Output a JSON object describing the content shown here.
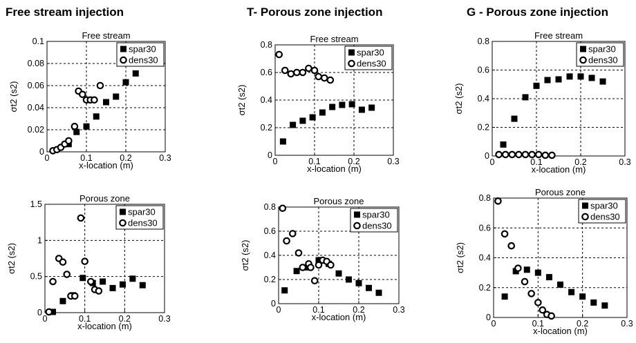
{
  "column_titles": [
    "Free stream injection",
    "T- Porous zone injection",
    "G - Porous zone injection"
  ],
  "chart_data": [
    {
      "type": "scatter",
      "title": "Free stream",
      "xlabel": "x-location (m)",
      "ylabel": "σt2 (s2)",
      "xlim": [
        0,
        0.3
      ],
      "ylim": [
        0,
        0.1
      ],
      "xticks": [
        0,
        0.1,
        0.2,
        0.3
      ],
      "xtick_labels": [
        "0",
        "0.1",
        "0.2",
        "0.3"
      ],
      "yticks": [
        0,
        0.02,
        0.04,
        0.06,
        0.08,
        0.1
      ],
      "ytick_labels": [
        "0",
        "0.02",
        "0.04",
        "0.06",
        "0.08",
        "0.1"
      ],
      "legend_position": "top-right",
      "grid": true,
      "series": [
        {
          "name": "spar30",
          "marker": "square",
          "x": [
            0.055,
            0.075,
            0.1,
            0.125,
            0.15,
            0.175,
            0.2,
            0.225
          ],
          "y": [
            0.007,
            0.018,
            0.023,
            0.032,
            0.045,
            0.05,
            0.063,
            0.071
          ]
        },
        {
          "name": "dens30",
          "marker": "circle",
          "x": [
            0.015,
            0.025,
            0.035,
            0.045,
            0.055,
            0.07,
            0.08,
            0.09,
            0.1,
            0.11,
            0.12,
            0.135
          ],
          "y": [
            0.001,
            0.002,
            0.004,
            0.007,
            0.01,
            0.023,
            0.055,
            0.052,
            0.047,
            0.047,
            0.047,
            0.06
          ]
        }
      ]
    },
    {
      "type": "scatter",
      "title": "Free stream",
      "xlabel": "x-location (m)",
      "ylabel": "σt2 (s2)",
      "xlim": [
        0,
        0.3
      ],
      "ylim": [
        0,
        0.8
      ],
      "xticks": [
        0,
        0.1,
        0.2,
        0.3
      ],
      "xtick_labels": [
        "0",
        "0.1",
        "0.2",
        "0.3"
      ],
      "yticks": [
        0,
        0.2,
        0.4,
        0.6,
        0.8
      ],
      "ytick_labels": [
        "0",
        "0.2",
        "0.4",
        "0.6",
        "0.8"
      ],
      "legend_position": "top-right",
      "grid": true,
      "series": [
        {
          "name": "spar30",
          "marker": "square",
          "x": [
            0.02,
            0.045,
            0.07,
            0.095,
            0.12,
            0.145,
            0.17,
            0.195,
            0.22,
            0.245
          ],
          "y": [
            0.1,
            0.22,
            0.25,
            0.275,
            0.31,
            0.35,
            0.365,
            0.37,
            0.33,
            0.345
          ]
        },
        {
          "name": "dens30",
          "marker": "circle",
          "x": [
            0.01,
            0.025,
            0.04,
            0.055,
            0.07,
            0.085,
            0.1,
            0.11,
            0.125,
            0.14
          ],
          "y": [
            0.73,
            0.615,
            0.59,
            0.6,
            0.6,
            0.63,
            0.615,
            0.57,
            0.56,
            0.545
          ]
        }
      ]
    },
    {
      "type": "scatter",
      "title": "Free stream",
      "xlabel": "x-location (m)",
      "ylabel": "σt2 (s2)",
      "xlim": [
        0,
        0.3
      ],
      "ylim": [
        0,
        0.8
      ],
      "xticks": [
        0,
        0.1,
        0.2,
        0.3
      ],
      "xtick_labels": [
        "0",
        "0.1",
        "0.2",
        "0.3"
      ],
      "yticks": [
        0,
        0.2,
        0.4,
        0.6,
        0.8
      ],
      "ytick_labels": [
        "0",
        "0.2",
        "0.4",
        "0.6",
        "0.8"
      ],
      "legend_position": "top-right",
      "grid": true,
      "series": [
        {
          "name": "spar30",
          "marker": "square",
          "x": [
            0.025,
            0.05,
            0.075,
            0.1,
            0.125,
            0.15,
            0.175,
            0.2,
            0.225,
            0.25
          ],
          "y": [
            0.08,
            0.26,
            0.41,
            0.49,
            0.53,
            0.535,
            0.555,
            0.555,
            0.545,
            0.52
          ]
        },
        {
          "name": "dens30",
          "marker": "circle",
          "x": [
            0.015,
            0.03,
            0.045,
            0.06,
            0.075,
            0.09,
            0.105,
            0.12,
            0.135
          ],
          "y": [
            0.01,
            0.01,
            0.01,
            0.01,
            0.01,
            0.01,
            0.01,
            0.005,
            0.005
          ]
        }
      ]
    },
    {
      "type": "scatter",
      "title": "Porous zone",
      "xlabel": "x-location (m)",
      "ylabel": "σt2 (s2)",
      "xlim": [
        0,
        0.3
      ],
      "ylim": [
        0,
        1.5
      ],
      "xticks": [
        0,
        0.1,
        0.2,
        0.3
      ],
      "xtick_labels": [
        "0",
        "0.1",
        "0.2",
        "0.3"
      ],
      "yticks": [
        0,
        0.5,
        1,
        1.5
      ],
      "ytick_labels": [
        "0",
        "0.5",
        "1",
        "1.5"
      ],
      "legend_position": "top-right",
      "grid": true,
      "series": [
        {
          "name": "spar30",
          "marker": "square",
          "x": [
            0.02,
            0.045,
            0.07,
            0.095,
            0.12,
            0.145,
            0.17,
            0.195,
            0.22,
            0.245
          ],
          "y": [
            0.01,
            0.16,
            0.24,
            0.48,
            0.41,
            0.43,
            0.34,
            0.39,
            0.47,
            0.38
          ]
        },
        {
          "name": "dens30",
          "marker": "circle",
          "x": [
            0.01,
            0.02,
            0.035,
            0.045,
            0.055,
            0.065,
            0.075,
            0.09,
            0.1,
            0.115,
            0.125,
            0.135
          ],
          "y": [
            0.01,
            0.43,
            0.75,
            0.7,
            0.53,
            0.23,
            0.23,
            1.31,
            0.71,
            0.43,
            0.32,
            0.3
          ]
        }
      ]
    },
    {
      "type": "scatter",
      "title": "Porous zone",
      "xlabel": "x-location (m)",
      "ylabel": "σt2 (s2)",
      "xlim": [
        0,
        0.3
      ],
      "ylim": [
        0,
        0.8
      ],
      "xticks": [
        0,
        0.1,
        0.2,
        0.3
      ],
      "xtick_labels": [
        "0",
        "0.1",
        "0.2",
        "0.3"
      ],
      "yticks": [
        0,
        0.2,
        0.4,
        0.6,
        0.8
      ],
      "ytick_labels": [
        "0",
        "0.2",
        "0.4",
        "0.6",
        "0.8"
      ],
      "legend_position": "top-right",
      "grid": true,
      "series": [
        {
          "name": "spar30",
          "marker": "square",
          "x": [
            0.015,
            0.045,
            0.07,
            0.1,
            0.125,
            0.15,
            0.175,
            0.2,
            0.225,
            0.25
          ],
          "y": [
            0.11,
            0.27,
            0.3,
            0.36,
            0.33,
            0.25,
            0.2,
            0.17,
            0.13,
            0.09
          ]
        },
        {
          "name": "dens30",
          "marker": "circle",
          "x": [
            0.01,
            0.02,
            0.035,
            0.05,
            0.06,
            0.075,
            0.08,
            0.09,
            0.1,
            0.11,
            0.12,
            0.13
          ],
          "y": [
            0.79,
            0.52,
            0.58,
            0.42,
            0.3,
            0.33,
            0.3,
            0.19,
            0.32,
            0.36,
            0.35,
            0.32
          ]
        }
      ]
    },
    {
      "type": "scatter",
      "title": "Porous zone",
      "xlabel": "x-location (m)",
      "ylabel": "σt2 (s2)",
      "xlim": [
        0,
        0.3
      ],
      "ylim": [
        0,
        0.8
      ],
      "xticks": [
        0,
        0.1,
        0.2,
        0.3
      ],
      "xtick_labels": [
        "0",
        "0.1",
        "0.2",
        "0.3"
      ],
      "yticks": [
        0,
        0.2,
        0.4,
        0.6,
        0.8
      ],
      "ytick_labels": [
        "0",
        "0.2",
        "0.4",
        "0.6",
        "0.8"
      ],
      "legend_position": "top-right",
      "grid": true,
      "series": [
        {
          "name": "spar30",
          "marker": "square",
          "x": [
            0.025,
            0.05,
            0.075,
            0.1,
            0.125,
            0.15,
            0.175,
            0.2,
            0.225,
            0.25
          ],
          "y": [
            0.14,
            0.31,
            0.32,
            0.3,
            0.27,
            0.22,
            0.17,
            0.14,
            0.1,
            0.08
          ]
        },
        {
          "name": "dens30",
          "marker": "circle",
          "x": [
            0.01,
            0.025,
            0.04,
            0.055,
            0.07,
            0.085,
            0.1,
            0.11,
            0.12,
            0.13
          ],
          "y": [
            0.78,
            0.56,
            0.48,
            0.33,
            0.24,
            0.16,
            0.1,
            0.05,
            0.02,
            0.01
          ]
        }
      ]
    }
  ]
}
